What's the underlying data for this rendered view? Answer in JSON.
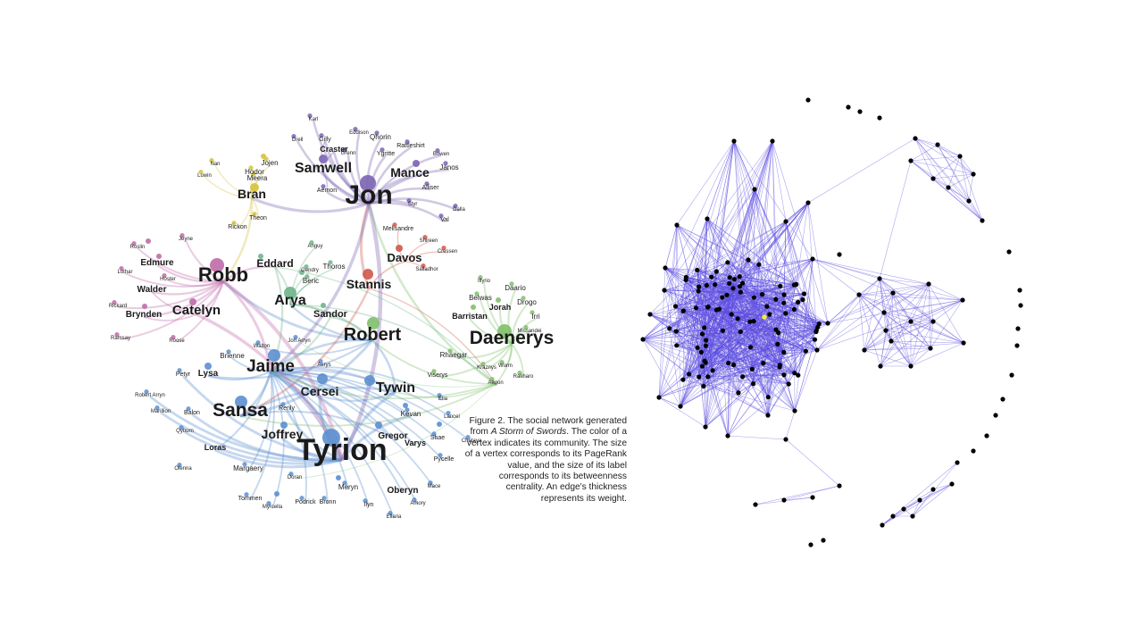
{
  "figure_caption": {
    "prefix": "Figure 2. The social network generated from ",
    "title": "A Storm of Swords",
    "suffix": ". The color of a vertex indicates its community. The size of a vertex corresponds to its PageRank value, and the size of its label corresponds to its betweenness centrality. An edge's thickness represents its weight."
  },
  "left_network": {
    "community_colors": {
      "jon": "#7b63b3",
      "bran": "#d6c23c",
      "robb": "#c06aa8",
      "arya": "#6fb48a",
      "stannis": "#d0584a",
      "daenerys": "#7fbf6a",
      "lannister": "#5b8fcf"
    },
    "labels": [
      {
        "text": "Jon",
        "c": "jon",
        "s": 30
      },
      {
        "text": "Samwell",
        "c": "jon",
        "s": 16
      },
      {
        "text": "Mance",
        "c": "jon",
        "s": 14
      },
      {
        "text": "Craster",
        "c": "jon",
        "s": 9
      },
      {
        "text": "Qhorin",
        "c": "jon",
        "s": 8
      },
      {
        "text": "Rattleshirt",
        "c": "jon",
        "s": 7
      },
      {
        "text": "Gilly",
        "c": "jon",
        "s": 7
      },
      {
        "text": "Ygritte",
        "c": "jon",
        "s": 7
      },
      {
        "text": "Janos",
        "c": "jon",
        "s": 8
      },
      {
        "text": "Alliser",
        "c": "jon",
        "s": 7
      },
      {
        "text": "Val",
        "c": "jon",
        "s": 7
      },
      {
        "text": "Dalla",
        "c": "jon",
        "s": 6
      },
      {
        "text": "Aemon",
        "c": "jon",
        "s": 7
      },
      {
        "text": "Bowen",
        "c": "jon",
        "s": 6
      },
      {
        "text": "Eddison",
        "c": "jon",
        "s": 6
      },
      {
        "text": "Grenn",
        "c": "jon",
        "s": 6
      },
      {
        "text": "Karl",
        "c": "jon",
        "s": 6
      },
      {
        "text": "Orell",
        "c": "jon",
        "s": 6
      },
      {
        "text": "Styr",
        "c": "jon",
        "s": 6
      },
      {
        "text": "Bran",
        "c": "bran",
        "s": 14
      },
      {
        "text": "Jojen",
        "c": "bran",
        "s": 8
      },
      {
        "text": "Hodor",
        "c": "bran",
        "s": 8
      },
      {
        "text": "Meera",
        "c": "bran",
        "s": 8
      },
      {
        "text": "Nan",
        "c": "bran",
        "s": 6
      },
      {
        "text": "Luwin",
        "c": "bran",
        "s": 6
      },
      {
        "text": "Theon",
        "c": "bran",
        "s": 7
      },
      {
        "text": "Rickon",
        "c": "bran",
        "s": 7
      },
      {
        "text": "Robb",
        "c": "robb",
        "s": 22
      },
      {
        "text": "Catelyn",
        "c": "robb",
        "s": 15
      },
      {
        "text": "Edmure",
        "c": "robb",
        "s": 10
      },
      {
        "text": "Walder",
        "c": "robb",
        "s": 10
      },
      {
        "text": "Brynden",
        "c": "robb",
        "s": 10
      },
      {
        "text": "Roslin",
        "c": "robb",
        "s": 6
      },
      {
        "text": "Lothar",
        "c": "robb",
        "s": 6
      },
      {
        "text": "Hoster",
        "c": "robb",
        "s": 6
      },
      {
        "text": "Rickard",
        "c": "robb",
        "s": 6
      },
      {
        "text": "Ramsay",
        "c": "robb",
        "s": 6
      },
      {
        "text": "Roose",
        "c": "robb",
        "s": 6
      },
      {
        "text": "Jeyne",
        "c": "robb",
        "s": 6
      },
      {
        "text": "Eddard",
        "c": "arya",
        "s": 12
      },
      {
        "text": "Arya",
        "c": "arya",
        "s": 16
      },
      {
        "text": "Beric",
        "c": "arya",
        "s": 8
      },
      {
        "text": "Thoros",
        "c": "arya",
        "s": 8
      },
      {
        "text": "Gendry",
        "c": "arya",
        "s": 6
      },
      {
        "text": "Anguy",
        "c": "arya",
        "s": 6
      },
      {
        "text": "Sandor",
        "c": "arya",
        "s": 11
      },
      {
        "text": "Stannis",
        "c": "stannis",
        "s": 14
      },
      {
        "text": "Davos",
        "c": "stannis",
        "s": 13
      },
      {
        "text": "Melisandre",
        "c": "stannis",
        "s": 7
      },
      {
        "text": "Salladhor",
        "c": "stannis",
        "s": 6
      },
      {
        "text": "Shireen",
        "c": "stannis",
        "s": 6
      },
      {
        "text": "Cressen",
        "c": "stannis",
        "s": 6
      },
      {
        "text": "Daenerys",
        "c": "daenerys",
        "s": 21
      },
      {
        "text": "Barristan",
        "c": "daenerys",
        "s": 9
      },
      {
        "text": "Jorah",
        "c": "daenerys",
        "s": 9
      },
      {
        "text": "Belwas",
        "c": "daenerys",
        "s": 8
      },
      {
        "text": "Daario",
        "c": "daenerys",
        "s": 8
      },
      {
        "text": "Drogo",
        "c": "daenerys",
        "s": 8
      },
      {
        "text": "Irri",
        "c": "daenerys",
        "s": 8
      },
      {
        "text": "Missandei",
        "c": "daenerys",
        "s": 6
      },
      {
        "text": "Illyrio",
        "c": "daenerys",
        "s": 6
      },
      {
        "text": "Rhaegar",
        "c": "daenerys",
        "s": 8
      },
      {
        "text": "Viserys",
        "c": "daenerys",
        "s": 7
      },
      {
        "text": "Kraznys",
        "c": "daenerys",
        "s": 6
      },
      {
        "text": "Worm",
        "c": "daenerys",
        "s": 6
      },
      {
        "text": "Rakharo",
        "c": "daenerys",
        "s": 6
      },
      {
        "text": "Aegon",
        "c": "daenerys",
        "s": 6
      },
      {
        "text": "Robert",
        "c": "lannister",
        "s": 20
      },
      {
        "text": "Jaime",
        "c": "lannister",
        "s": 19
      },
      {
        "text": "Tyrion",
        "c": "lannister",
        "s": 34
      },
      {
        "text": "Sansa",
        "c": "lannister",
        "s": 21
      },
      {
        "text": "Tywin",
        "c": "lannister",
        "s": 16
      },
      {
        "text": "Cersei",
        "c": "lannister",
        "s": 14
      },
      {
        "text": "Joffrey",
        "c": "lannister",
        "s": 14
      },
      {
        "text": "Lysa",
        "c": "lannister",
        "s": 10
      },
      {
        "text": "Brienne",
        "c": "lannister",
        "s": 8
      },
      {
        "text": "Gregor",
        "c": "lannister",
        "s": 10
      },
      {
        "text": "Varys",
        "c": "lannister",
        "s": 9
      },
      {
        "text": "Kevan",
        "c": "lannister",
        "s": 8
      },
      {
        "text": "Loras",
        "c": "lannister",
        "s": 9
      },
      {
        "text": "Margaery",
        "c": "lannister",
        "s": 8
      },
      {
        "text": "Oberyn",
        "c": "lannister",
        "s": 10
      },
      {
        "text": "Meryn",
        "c": "lannister",
        "s": 8
      },
      {
        "text": "Podrick",
        "c": "lannister",
        "s": 7
      },
      {
        "text": "Bronn",
        "c": "lannister",
        "s": 7
      },
      {
        "text": "Tommen",
        "c": "lannister",
        "s": 7
      },
      {
        "text": "Myrcella",
        "c": "lannister",
        "s": 6
      },
      {
        "text": "Ilyn",
        "c": "lannister",
        "s": 7
      },
      {
        "text": "Ellaria",
        "c": "lannister",
        "s": 6
      },
      {
        "text": "Amory",
        "c": "lannister",
        "s": 6
      },
      {
        "text": "Mace",
        "c": "lannister",
        "s": 6
      },
      {
        "text": "Pycelle",
        "c": "lannister",
        "s": 7
      },
      {
        "text": "Shae",
        "c": "lannister",
        "s": 7
      },
      {
        "text": "Chataya",
        "c": "lannister",
        "s": 6
      },
      {
        "text": "Lancel",
        "c": "lannister",
        "s": 6
      },
      {
        "text": "Elia",
        "c": "lannister",
        "s": 6
      },
      {
        "text": "Renly",
        "c": "lannister",
        "s": 7
      },
      {
        "text": "Balon",
        "c": "lannister",
        "s": 7
      },
      {
        "text": "Petyr",
        "c": "lannister",
        "s": 7
      },
      {
        "text": "Robert Arryn",
        "c": "lannister",
        "s": 6
      },
      {
        "text": "Marillion",
        "c": "lannister",
        "s": 6
      },
      {
        "text": "Qyburn",
        "c": "lannister",
        "s": 6
      },
      {
        "text": "Olenna",
        "c": "lannister",
        "s": 6
      },
      {
        "text": "Doran",
        "c": "lannister",
        "s": 6
      },
      {
        "text": "Walton",
        "c": "lannister",
        "s": 6
      },
      {
        "text": "Jon Arryn",
        "c": "lannister",
        "s": 6
      },
      {
        "text": "Aerys",
        "c": "lannister",
        "s": 6
      }
    ]
  },
  "right_network": {
    "edge_color": "#5b4de0",
    "node_color": "#000000",
    "highlight_color": "#f2ee3a"
  }
}
